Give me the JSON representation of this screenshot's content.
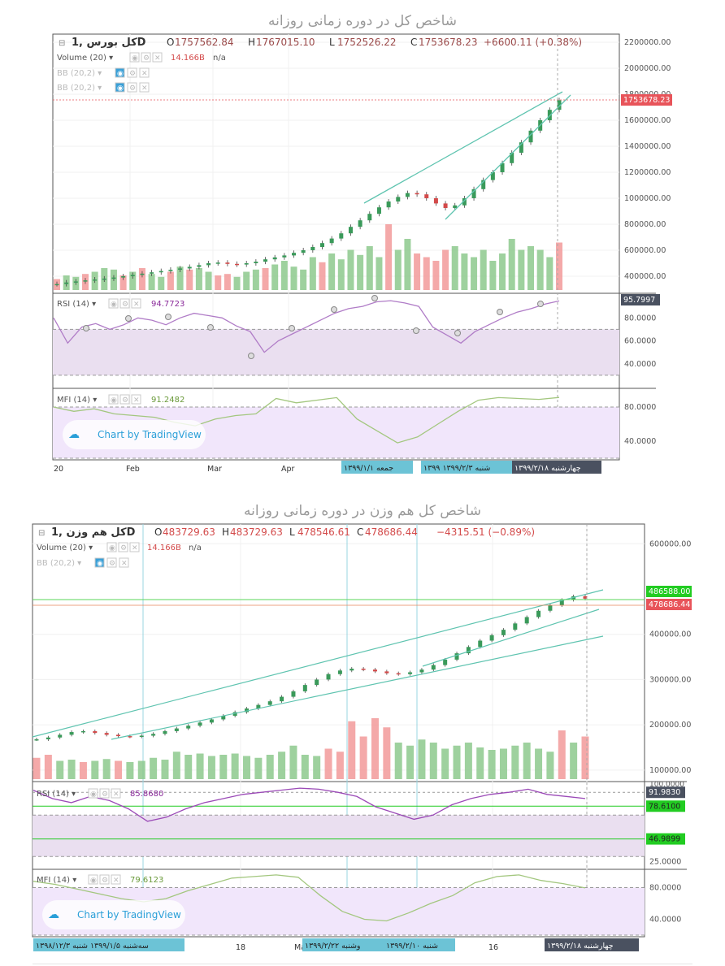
{
  "charts": [
    {
      "title": "شاخص کل در دوره زمانی روزانه",
      "symbol": "کل بورس ,1D",
      "ohlc": {
        "o_label": "O",
        "o": "1757562.84",
        "h_label": "H",
        "h": "1767015.10",
        "l_label": "L",
        "l": "1752526.22",
        "c_label": "C",
        "c": "1753678.23",
        "change": "+6600.11 (+0.38%)"
      },
      "volume_label": "Volume (20)",
      "volume_value": "14.166B",
      "volume_na": "n/a",
      "bb_labels": [
        "BB (20,2)",
        "BB (20,2)"
      ],
      "price_axis": [
        "2200000.00",
        "2000000.00",
        "1800000.00",
        "1600000.00",
        "1400000.00",
        "1200000.00",
        "1000000.00",
        "800000.00",
        "600000.00",
        "400000.00"
      ],
      "price_marker": "1753678.23",
      "rsi": {
        "label": "RSI (14)",
        "value": "94.7723",
        "marker": "95.7997",
        "axis": [
          "80.0000",
          "60.0000",
          "40.0000"
        ]
      },
      "mfi": {
        "label": "MFI (14)",
        "value": "91.2482",
        "axis": [
          "80.0000",
          "40.0000"
        ]
      },
      "watermark": "Chart by TradingView",
      "time_axis": [
        "20",
        "Feb",
        "Mar",
        "Apr"
      ],
      "time_tags": [
        "جمعه ۱۳۹۹/۱/۱",
        "شنبه ۱۳۹۹/۲/۳ ۱۳۹۹",
        "چهارشنبه ۱۳۹۹/۲/۱۸"
      ],
      "colors": {
        "up": "#8dc98d",
        "down": "#f29a9a",
        "rsi_line": "#b07cc7",
        "mfi_line": "#a3c77f",
        "trend": "#5fc4b0",
        "price_tag": "#e8545a",
        "dark_tag": "#4a5160",
        "time_tag": "#6cc3d6"
      }
    },
    {
      "title": "شاخص کل هم وزن در دوره زمانی روزانه",
      "symbol": "کل هم وزن ,1D",
      "ohlc": {
        "o_label": "O",
        "o": "483729.63",
        "h_label": "H",
        "h": "483729.63",
        "l_label": "L",
        "l": "478546.61",
        "c_label": "C",
        "c": "478686.44",
        "change": "−4315.51 (−0.89%)"
      },
      "volume_label": "Volume (20)",
      "volume_value": "14.166B",
      "volume_na": "n/a",
      "bb_labels": [
        "BB (20,2)"
      ],
      "price_axis": [
        "600000.00",
        "400000.00",
        "300000.00",
        "200000.00",
        "100000.00"
      ],
      "price_markers": [
        "486588.00",
        "478686.44"
      ],
      "rsi": {
        "label": "RSI (14)",
        "value": "85.8680",
        "axis": [
          "100.0000",
          "25.0000"
        ],
        "markers": [
          "91.9830",
          "78.6100",
          "46.9899"
        ]
      },
      "mfi": {
        "label": "MFI (14)",
        "value": "79.6123",
        "axis": [
          "80.0000",
          "40.0000"
        ]
      },
      "watermark": "Chart by TradingView",
      "time_axis": [
        "18",
        "Ma",
        "16"
      ],
      "time_tags": [
        "سه‌شنبه ۱۳۹۹/۱/۵ شنبه ۱۳۹۸/۱۲/۳",
        "وشنبه ۱۳۹۹/۲/۲۲",
        "شنبه ۱۳۹۹/۲/۱۰",
        "چهارشنبه ۱۳۹۹/۲/۱۸"
      ]
    }
  ],
  "chart_data": [
    {
      "type": "candlestick",
      "title": "شاخص کل در دوره زمانی روزانه",
      "ylim": [
        300000,
        2200000
      ],
      "close_series": [
        340000,
        352000,
        360000,
        368000,
        375000,
        382000,
        390000,
        400000,
        410000,
        420000,
        430000,
        440000,
        450000,
        460000,
        472000,
        485000,
        500000,
        505000,
        495000,
        490000,
        500000,
        512000,
        530000,
        545000,
        560000,
        580000,
        600000,
        625000,
        655000,
        690000,
        730000,
        780000,
        830000,
        880000,
        930000,
        975000,
        1010000,
        1040000,
        1030000,
        1000000,
        960000,
        925000,
        945000,
        1000000,
        1070000,
        1140000,
        1200000,
        1270000,
        1350000,
        1430000,
        1520000,
        1600000,
        1680000,
        1753678
      ],
      "volume_relative": [
        0.15,
        0.2,
        0.18,
        0.22,
        0.25,
        0.3,
        0.28,
        0.2,
        0.25,
        0.3,
        0.22,
        0.18,
        0.25,
        0.32,
        0.28,
        0.3,
        0.25,
        0.2,
        0.22,
        0.18,
        0.25,
        0.28,
        0.3,
        0.35,
        0.4,
        0.32,
        0.28,
        0.45,
        0.38,
        0.5,
        0.42,
        0.55,
        0.48,
        0.6,
        0.45,
        0.9,
        0.55,
        0.7,
        0.5,
        0.45,
        0.4,
        0.55,
        0.6,
        0.5,
        0.45,
        0.55,
        0.4,
        0.5,
        0.7,
        0.55,
        0.6,
        0.55,
        0.45,
        0.65
      ],
      "volume_direction_up": [
        false,
        true,
        true,
        false,
        true,
        true,
        true,
        false,
        true,
        false,
        true,
        true,
        false,
        true,
        false,
        true,
        true,
        false,
        false,
        true,
        true,
        true,
        false,
        true,
        true,
        true,
        true,
        true,
        false,
        true,
        true,
        true,
        true,
        true,
        true,
        false,
        true,
        true,
        false,
        false,
        false,
        false,
        true,
        true,
        true,
        true,
        true,
        true,
        true,
        true,
        true,
        true,
        true,
        false
      ],
      "rsi": [
        80,
        58,
        72,
        75,
        70,
        74,
        80,
        78,
        74,
        80,
        84,
        82,
        80,
        73,
        68,
        50,
        60,
        66,
        72,
        78,
        84,
        88,
        90,
        94,
        95,
        93,
        90,
        72,
        65,
        58,
        68,
        74,
        80,
        85,
        88,
        92,
        94.77
      ],
      "mfi": [
        80,
        75,
        78,
        72,
        70,
        68,
        62,
        58,
        66,
        70,
        72,
        90,
        85,
        88,
        91,
        66,
        52,
        38,
        45,
        60,
        75,
        88,
        91,
        90,
        89,
        91.25
      ]
    },
    {
      "type": "candlestick",
      "title": "شاخص کل هم وزن در دوره زمانی روزانه",
      "ylim": [
        80000,
        640000
      ],
      "close_series": [
        168000,
        172000,
        178000,
        184000,
        186000,
        182000,
        178000,
        175000,
        174000,
        176000,
        180000,
        186000,
        192000,
        198000,
        205000,
        212000,
        220000,
        228000,
        236000,
        244000,
        252000,
        262000,
        274000,
        288000,
        300000,
        312000,
        320000,
        324000,
        322000,
        318000,
        314000,
        312000,
        316000,
        322000,
        332000,
        344000,
        358000,
        372000,
        386000,
        398000,
        410000,
        424000,
        438000,
        452000,
        464000,
        476000,
        484000,
        478686
      ],
      "volume_relative": [
        0.35,
        0.4,
        0.3,
        0.32,
        0.28,
        0.3,
        0.33,
        0.3,
        0.28,
        0.3,
        0.35,
        0.32,
        0.45,
        0.4,
        0.42,
        0.38,
        0.4,
        0.42,
        0.38,
        0.35,
        0.4,
        0.45,
        0.55,
        0.4,
        0.38,
        0.5,
        0.45,
        0.95,
        0.7,
        1.0,
        0.85,
        0.6,
        0.55,
        0.65,
        0.6,
        0.5,
        0.55,
        0.6,
        0.52,
        0.48,
        0.5,
        0.55,
        0.6,
        0.5,
        0.45,
        0.8,
        0.6,
        0.7
      ],
      "volume_direction_up": [
        false,
        false,
        true,
        true,
        false,
        true,
        true,
        false,
        true,
        true,
        true,
        true,
        true,
        true,
        true,
        true,
        true,
        true,
        true,
        true,
        true,
        true,
        true,
        true,
        true,
        false,
        false,
        false,
        false,
        false,
        false,
        true,
        true,
        true,
        true,
        true,
        true,
        true,
        true,
        true,
        true,
        true,
        true,
        true,
        true,
        false,
        true,
        false
      ],
      "rsi": [
        94,
        86,
        82,
        88,
        84,
        76,
        64,
        68,
        76,
        82,
        86,
        90,
        92,
        94,
        96,
        95,
        92,
        88,
        78,
        72,
        66,
        70,
        80,
        86,
        90,
        92,
        95,
        90,
        88,
        86
      ],
      "mfi": [
        88,
        84,
        78,
        72,
        66,
        62,
        66,
        76,
        84,
        92,
        94,
        96,
        93,
        70,
        50,
        40,
        38,
        48,
        60,
        70,
        86,
        94,
        96,
        89,
        85,
        79.61
      ]
    }
  ]
}
